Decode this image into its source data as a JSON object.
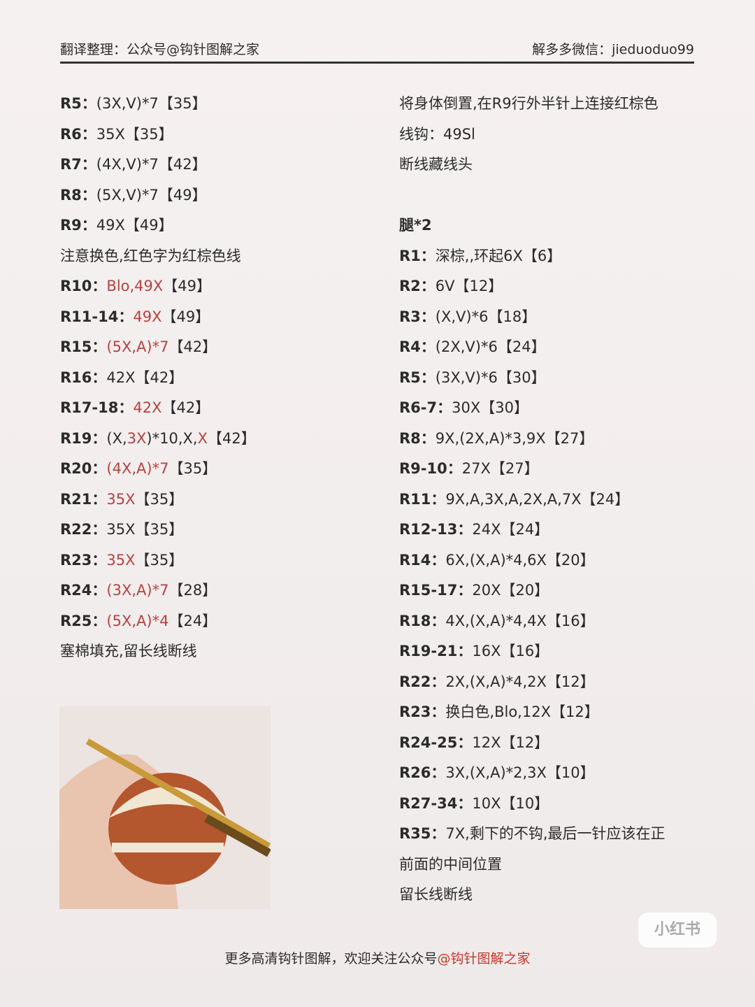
{
  "header": {
    "left": "翻译整理：公众号@钩针图解之家",
    "right": "解多多微信：jieduoduo99"
  },
  "left_column": [
    {
      "label": "R5：",
      "parts": [
        {
          "text": "(3X,V)*7"
        },
        {
          "text": "【35】"
        }
      ]
    },
    {
      "label": "R6：",
      "parts": [
        {
          "text": "35X"
        },
        {
          "text": "【35】"
        }
      ]
    },
    {
      "label": "R7：",
      "parts": [
        {
          "text": "(4X,V)*7"
        },
        {
          "text": "【42】"
        }
      ]
    },
    {
      "label": "R8：",
      "parts": [
        {
          "text": "(5X,V)*7"
        },
        {
          "text": "【49】"
        }
      ]
    },
    {
      "label": "R9：",
      "parts": [
        {
          "text": "49X"
        },
        {
          "text": "【49】"
        }
      ]
    },
    {
      "parts": [
        {
          "text": "注意换色,红色字为红棕色线"
        }
      ]
    },
    {
      "label": "R10：",
      "parts": [
        {
          "text": "Blo,49X",
          "color": "#b8413f"
        },
        {
          "text": "【49】"
        }
      ]
    },
    {
      "label": "R11-14：",
      "parts": [
        {
          "text": "49X",
          "color": "#b8413f"
        },
        {
          "text": "【49】"
        }
      ]
    },
    {
      "label": "R15：",
      "parts": [
        {
          "text": "(5X,A)*7",
          "color": "#b8413f"
        },
        {
          "text": "【42】"
        }
      ]
    },
    {
      "label": "R16：",
      "parts": [
        {
          "text": "42X"
        },
        {
          "text": "【42】"
        }
      ]
    },
    {
      "label": "R17-18：",
      "parts": [
        {
          "text": "42X",
          "color": "#b8413f"
        },
        {
          "text": "【42】"
        }
      ]
    },
    {
      "label": "R19：",
      "parts": [
        {
          "text": "(X,"
        },
        {
          "text": "3X",
          "color": "#b8413f"
        },
        {
          "text": ")*10,X,"
        },
        {
          "text": "X",
          "color": "#b8413f"
        },
        {
          "text": "【42】"
        }
      ]
    },
    {
      "label": "R20：",
      "parts": [
        {
          "text": "(4X,A)*7",
          "color": "#b8413f"
        },
        {
          "text": "【35】"
        }
      ]
    },
    {
      "label": "R21：",
      "parts": [
        {
          "text": "35X",
          "color": "#b8413f"
        },
        {
          "text": "【35】"
        }
      ]
    },
    {
      "label": "R22：",
      "parts": [
        {
          "text": "35X"
        },
        {
          "text": "【35】"
        }
      ]
    },
    {
      "label": "R23：",
      "parts": [
        {
          "text": "35X",
          "color": "#b8413f"
        },
        {
          "text": "【35】"
        }
      ]
    },
    {
      "label": "R24：",
      "parts": [
        {
          "text": "(3X,A)*7",
          "color": "#b8413f"
        },
        {
          "text": "【28】"
        }
      ]
    },
    {
      "label": "R25：",
      "parts": [
        {
          "text": "(5X,A)*4",
          "color": "#b8413f"
        },
        {
          "text": "【24】"
        }
      ]
    },
    {
      "parts": [
        {
          "text": "塞棉填充,留长线断线"
        }
      ]
    }
  ],
  "right_column": [
    {
      "parts": [
        {
          "text": "将身体倒置,在R9行外半针上连接红棕色"
        }
      ]
    },
    {
      "parts": [
        {
          "text": "线钩：49Sl"
        }
      ]
    },
    {
      "parts": [
        {
          "text": "断线藏线头"
        }
      ]
    },
    {
      "label": "腿*2",
      "heading": true
    },
    {
      "label": "R1：",
      "parts": [
        {
          "text": "深棕,,环起6X"
        },
        {
          "text": "【6】"
        }
      ]
    },
    {
      "label": "R2：",
      "parts": [
        {
          "text": "6V"
        },
        {
          "text": "【12】"
        }
      ]
    },
    {
      "label": "R3：",
      "parts": [
        {
          "text": "(X,V)*6"
        },
        {
          "text": "【18】"
        }
      ]
    },
    {
      "label": "R4：",
      "parts": [
        {
          "text": "(2X,V)*6"
        },
        {
          "text": "【24】"
        }
      ]
    },
    {
      "label": "R5：",
      "parts": [
        {
          "text": "(3X,V)*6"
        },
        {
          "text": "【30】"
        }
      ]
    },
    {
      "label": "R6-7：",
      "parts": [
        {
          "text": "30X"
        },
        {
          "text": "【30】"
        }
      ]
    },
    {
      "label": "R8：",
      "parts": [
        {
          "text": "9X,(2X,A)*3,9X"
        },
        {
          "text": "【27】"
        }
      ]
    },
    {
      "label": "R9-10：",
      "parts": [
        {
          "text": "27X"
        },
        {
          "text": "【27】"
        }
      ]
    },
    {
      "label": "R11：",
      "parts": [
        {
          "text": "9X,A,3X,A,2X,A,7X"
        },
        {
          "text": "【24】"
        }
      ]
    },
    {
      "label": "R12-13：",
      "parts": [
        {
          "text": "24X"
        },
        {
          "text": "【24】"
        }
      ]
    },
    {
      "label": "R14：",
      "parts": [
        {
          "text": "6X,(X,A)*4,6X"
        },
        {
          "text": "【20】"
        }
      ]
    },
    {
      "label": "R15-17：",
      "parts": [
        {
          "text": "20X"
        },
        {
          "text": "【20】"
        }
      ]
    },
    {
      "label": "R18：",
      "parts": [
        {
          "text": "4X,(X,A)*4,4X"
        },
        {
          "text": "【16】"
        }
      ]
    },
    {
      "label": "R19-21：",
      "parts": [
        {
          "text": "16X"
        },
        {
          "text": "【16】"
        }
      ]
    },
    {
      "label": "R22：",
      "parts": [
        {
          "text": "2X,(X,A)*4,2X"
        },
        {
          "text": "【12】"
        }
      ]
    },
    {
      "label": "R23：",
      "parts": [
        {
          "text": "换白色,Blo,12X"
        },
        {
          "text": "【12】"
        }
      ]
    },
    {
      "label": "R24-25：",
      "parts": [
        {
          "text": "12X"
        },
        {
          "text": "【12】"
        }
      ]
    },
    {
      "label": "R26：",
      "parts": [
        {
          "text": "3X,(X,A)*2,3X"
        },
        {
          "text": "【10】"
        }
      ]
    },
    {
      "label": "R27-34：",
      "parts": [
        {
          "text": "10X"
        },
        {
          "text": "【10】"
        }
      ]
    },
    {
      "label": "R35：",
      "parts": [
        {
          "text": "7X,剩下的不钩,最后一针应该在正"
        }
      ]
    },
    {
      "parts": [
        {
          "text": "前面的中间位置"
        }
      ]
    },
    {
      "parts": [
        {
          "text": "留长线断线"
        }
      ]
    }
  ],
  "footer": {
    "parts": [
      {
        "text": "更多高清钩针图解，欢迎关注公众号"
      },
      {
        "text": "@钩针图解之家",
        "color": "#c0392b"
      }
    ]
  },
  "badge": "小红书"
}
